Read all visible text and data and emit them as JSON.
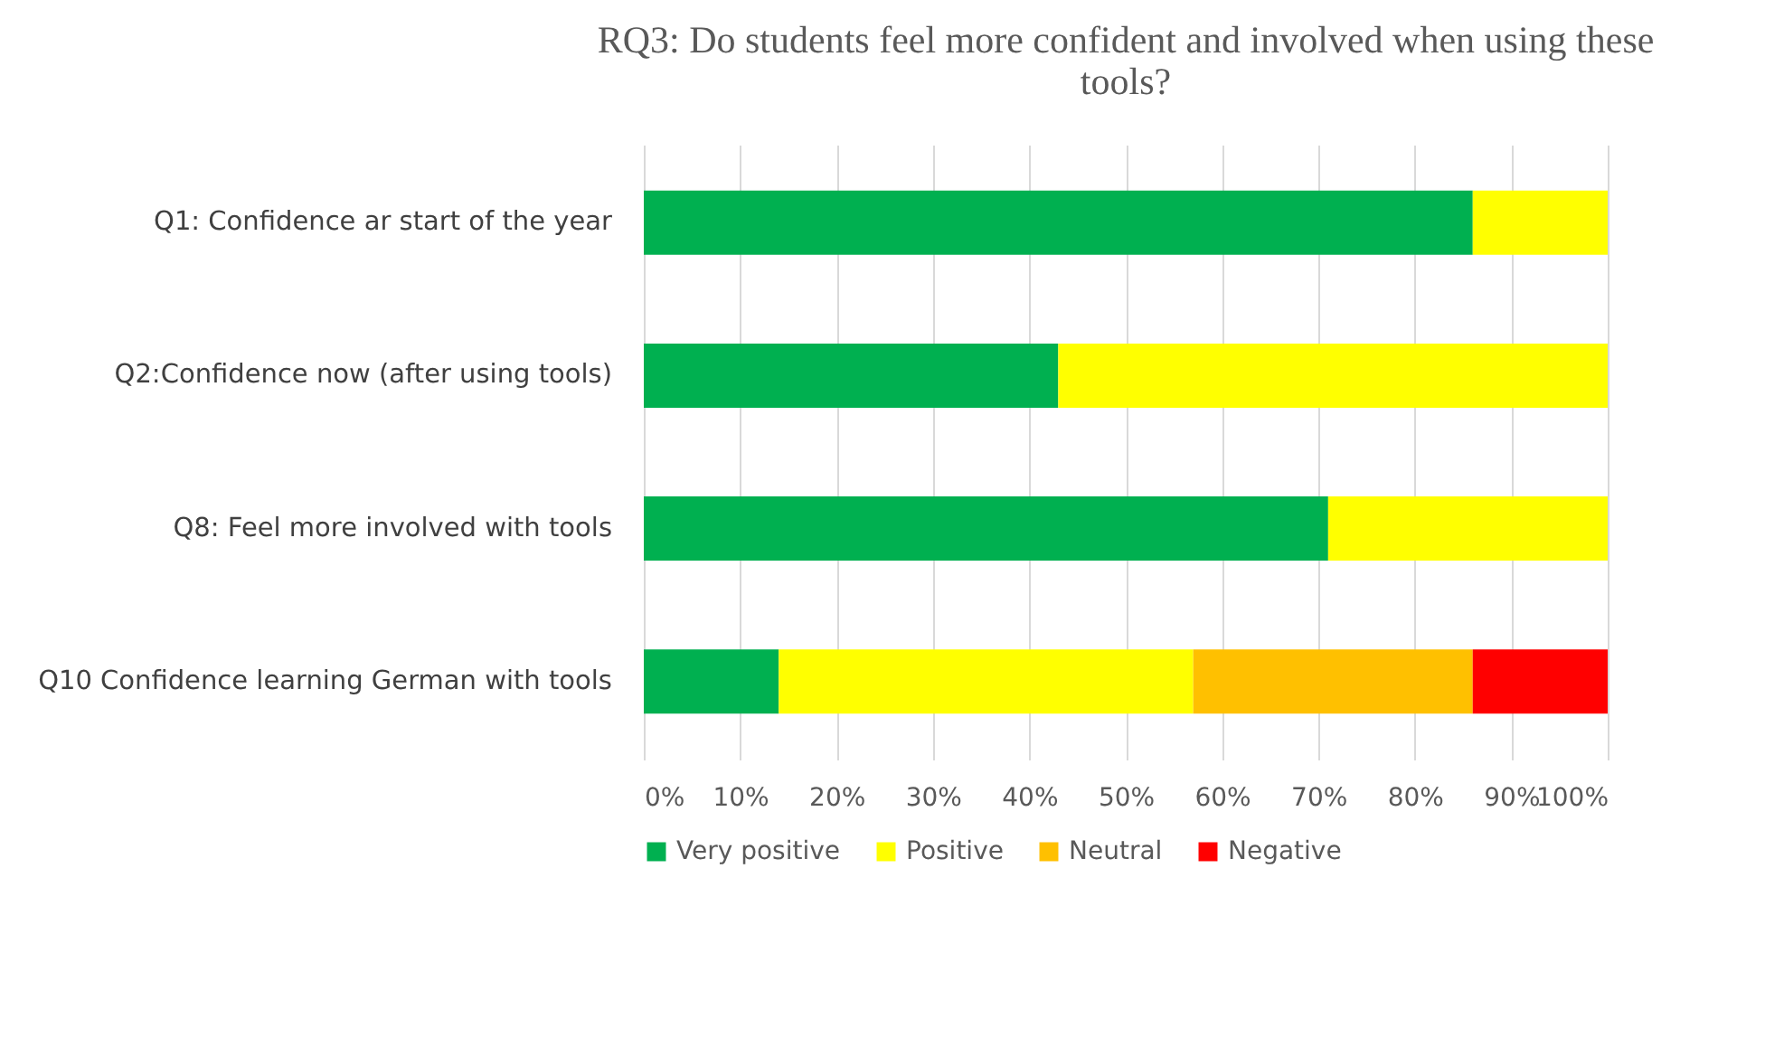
{
  "chart_data": {
    "type": "bar",
    "orientation": "horizontal",
    "stacked": true,
    "title": "RQ3: Do students feel more confident and involved when using these tools?",
    "categories": [
      "Q1: Confidence ar start of the year",
      "Q2:Confidence now (after using tools)",
      "Q8: Feel more involved with tools",
      "Q10 Confidence learning German with tools"
    ],
    "series": [
      {
        "name": "Very positive",
        "color": "#00b050",
        "values": [
          86,
          43,
          71,
          14
        ]
      },
      {
        "name": "Positive",
        "color": "#ffff00",
        "values": [
          14,
          57,
          29,
          43
        ]
      },
      {
        "name": "Neutral",
        "color": "#ffc000",
        "values": [
          0,
          0,
          0,
          29
        ]
      },
      {
        "name": "Negative",
        "color": "#ff0000",
        "values": [
          0,
          0,
          0,
          14
        ]
      }
    ],
    "xlim": [
      0,
      100
    ],
    "xticks": [
      {
        "value": 0,
        "label": "0%"
      },
      {
        "value": 10,
        "label": "10%"
      },
      {
        "value": 20,
        "label": "20%"
      },
      {
        "value": 30,
        "label": "30%"
      },
      {
        "value": 40,
        "label": "40%"
      },
      {
        "value": 50,
        "label": "50%"
      },
      {
        "value": 60,
        "label": "60%"
      },
      {
        "value": 70,
        "label": "70%"
      },
      {
        "value": 80,
        "label": "80%"
      },
      {
        "value": 90,
        "label": "90%"
      },
      {
        "value": 100,
        "label": "100%"
      }
    ],
    "grid": "x",
    "legend": "bottom"
  }
}
